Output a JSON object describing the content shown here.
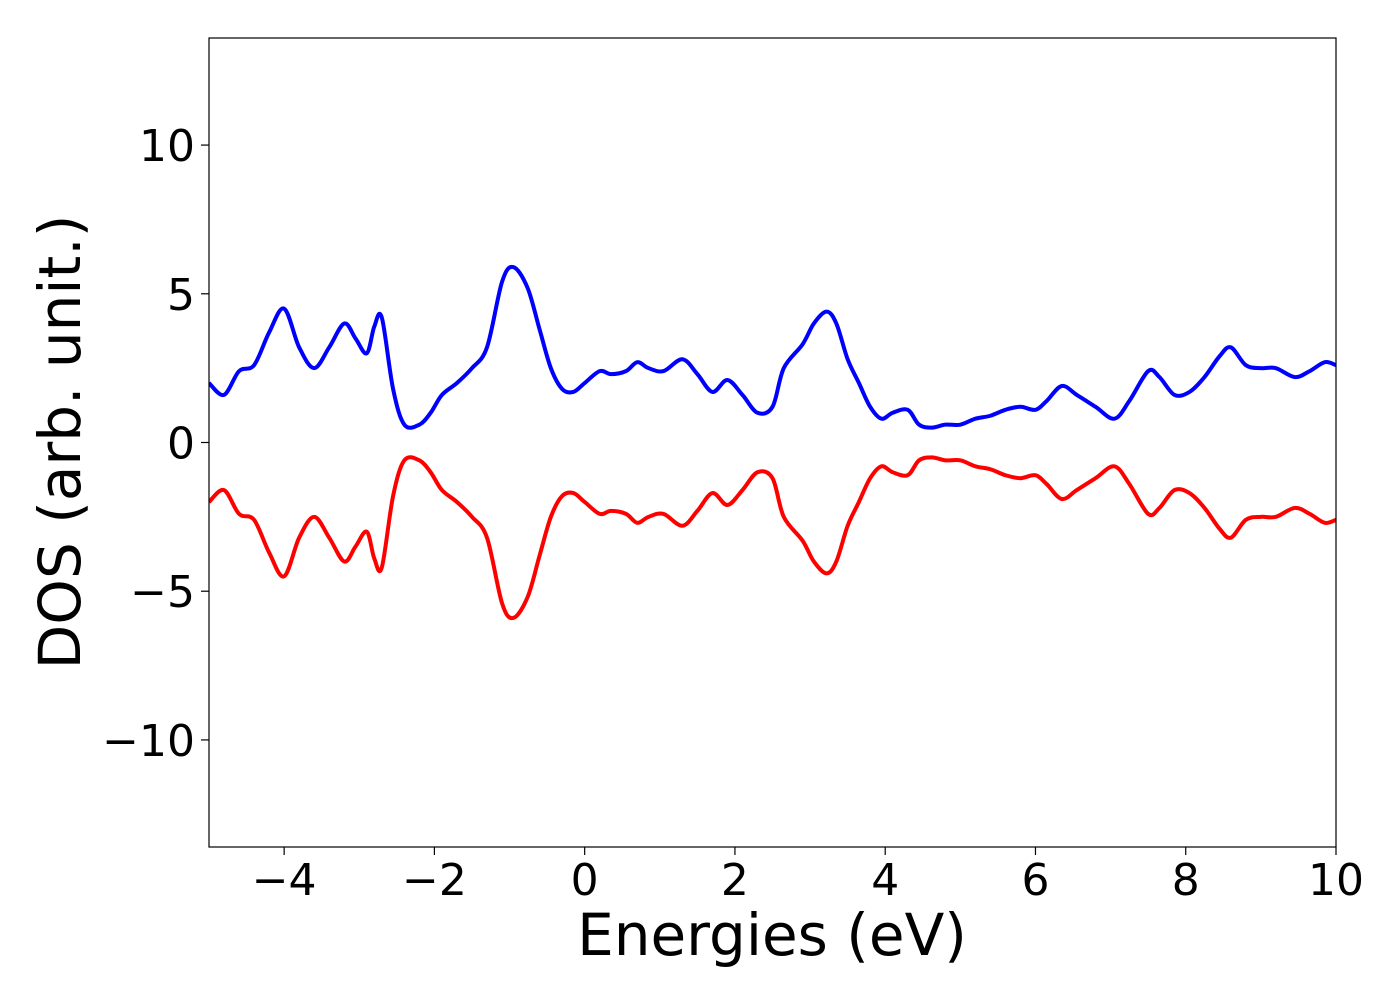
{
  "chart_data": {
    "type": "line",
    "xlabel": "Energies (eV)",
    "ylabel": "DOS (arb. unit.)",
    "xlim": [
      -5,
      10
    ],
    "ylim": [
      -13.6,
      13.6
    ],
    "grid": false,
    "legend": "none",
    "xticks": [
      -4,
      -2,
      0,
      2,
      4,
      6,
      8,
      10
    ],
    "xtick_labels": [
      "−4",
      "−2",
      "0",
      "2",
      "4",
      "6",
      "8",
      "10"
    ],
    "yticks": [
      -10,
      -5,
      0,
      5,
      10
    ],
    "ytick_labels": [
      "−10",
      "−5",
      "0",
      "5",
      "10"
    ],
    "series": [
      {
        "color": "#0000ff",
        "x": [
          -5.0,
          -4.8,
          -4.6,
          -4.4,
          -4.2,
          -4.0,
          -3.8,
          -3.6,
          -3.4,
          -3.2,
          -3.05,
          -2.9,
          -2.8,
          -2.7,
          -2.55,
          -2.4,
          -2.2,
          -2.05,
          -1.9,
          -1.7,
          -1.5,
          -1.3,
          -1.1,
          -0.95,
          -0.76,
          -0.6,
          -0.45,
          -0.3,
          -0.15,
          0.0,
          0.2,
          0.35,
          0.55,
          0.7,
          0.85,
          1.05,
          1.3,
          1.5,
          1.7,
          1.9,
          2.1,
          2.3,
          2.5,
          2.65,
          2.9,
          3.05,
          3.22,
          3.35,
          3.5,
          3.65,
          3.8,
          3.95,
          4.1,
          4.3,
          4.45,
          4.62,
          4.8,
          5.0,
          5.2,
          5.4,
          5.6,
          5.8,
          6.0,
          6.15,
          6.35,
          6.55,
          6.8,
          7.05,
          7.25,
          7.5,
          7.65,
          7.85,
          8.05,
          8.25,
          8.45,
          8.6,
          8.8,
          9.0,
          9.2,
          9.45,
          9.65,
          9.85,
          10.0
        ],
        "y": [
          2.0,
          1.6,
          2.4,
          2.6,
          3.7,
          4.5,
          3.2,
          2.5,
          3.2,
          4.0,
          3.5,
          3.0,
          3.9,
          4.2,
          1.8,
          0.6,
          0.6,
          1.0,
          1.6,
          2.0,
          2.5,
          3.2,
          5.4,
          5.9,
          5.2,
          3.8,
          2.5,
          1.8,
          1.7,
          2.0,
          2.4,
          2.3,
          2.4,
          2.7,
          2.5,
          2.4,
          2.8,
          2.3,
          1.7,
          2.1,
          1.6,
          1.0,
          1.2,
          2.5,
          3.3,
          4.0,
          4.4,
          4.0,
          2.8,
          2.0,
          1.2,
          0.8,
          1.0,
          1.1,
          0.6,
          0.5,
          0.6,
          0.6,
          0.8,
          0.9,
          1.1,
          1.2,
          1.1,
          1.4,
          1.9,
          1.6,
          1.2,
          0.8,
          1.4,
          2.4,
          2.2,
          1.6,
          1.7,
          2.2,
          2.9,
          3.2,
          2.6,
          2.5,
          2.5,
          2.2,
          2.4,
          2.7,
          2.6
        ]
      },
      {
        "color": "#ff0000",
        "x": [
          -5.0,
          -4.8,
          -4.6,
          -4.4,
          -4.2,
          -4.0,
          -3.8,
          -3.6,
          -3.4,
          -3.2,
          -3.05,
          -2.9,
          -2.8,
          -2.7,
          -2.55,
          -2.4,
          -2.2,
          -2.05,
          -1.9,
          -1.7,
          -1.5,
          -1.3,
          -1.1,
          -0.95,
          -0.76,
          -0.6,
          -0.45,
          -0.3,
          -0.15,
          0.0,
          0.2,
          0.35,
          0.55,
          0.7,
          0.85,
          1.05,
          1.3,
          1.5,
          1.7,
          1.9,
          2.1,
          2.3,
          2.5,
          2.65,
          2.9,
          3.05,
          3.22,
          3.35,
          3.5,
          3.65,
          3.8,
          3.95,
          4.1,
          4.3,
          4.45,
          4.62,
          4.8,
          5.0,
          5.2,
          5.4,
          5.6,
          5.8,
          6.0,
          6.15,
          6.35,
          6.55,
          6.8,
          7.05,
          7.25,
          7.5,
          7.65,
          7.85,
          8.05,
          8.25,
          8.45,
          8.6,
          8.8,
          9.0,
          9.2,
          9.45,
          9.65,
          9.85,
          10.0
        ],
        "y": [
          -2.0,
          -1.6,
          -2.4,
          -2.6,
          -3.7,
          -4.5,
          -3.2,
          -2.5,
          -3.2,
          -4.0,
          -3.5,
          -3.0,
          -3.9,
          -4.2,
          -1.8,
          -0.6,
          -0.6,
          -1.0,
          -1.6,
          -2.0,
          -2.5,
          -3.2,
          -5.4,
          -5.9,
          -5.2,
          -3.8,
          -2.5,
          -1.8,
          -1.7,
          -2.0,
          -2.4,
          -2.3,
          -2.4,
          -2.7,
          -2.5,
          -2.4,
          -2.8,
          -2.3,
          -1.7,
          -2.1,
          -1.6,
          -1.0,
          -1.2,
          -2.5,
          -3.3,
          -4.0,
          -4.4,
          -4.0,
          -2.8,
          -2.0,
          -1.2,
          -0.8,
          -1.0,
          -1.1,
          -0.6,
          -0.5,
          -0.6,
          -0.6,
          -0.8,
          -0.9,
          -1.1,
          -1.2,
          -1.1,
          -1.4,
          -1.9,
          -1.6,
          -1.2,
          -0.8,
          -1.4,
          -2.4,
          -2.2,
          -1.6,
          -1.7,
          -2.2,
          -2.9,
          -3.2,
          -2.6,
          -2.5,
          -2.5,
          -2.2,
          -2.4,
          -2.7,
          -2.6
        ]
      }
    ]
  }
}
